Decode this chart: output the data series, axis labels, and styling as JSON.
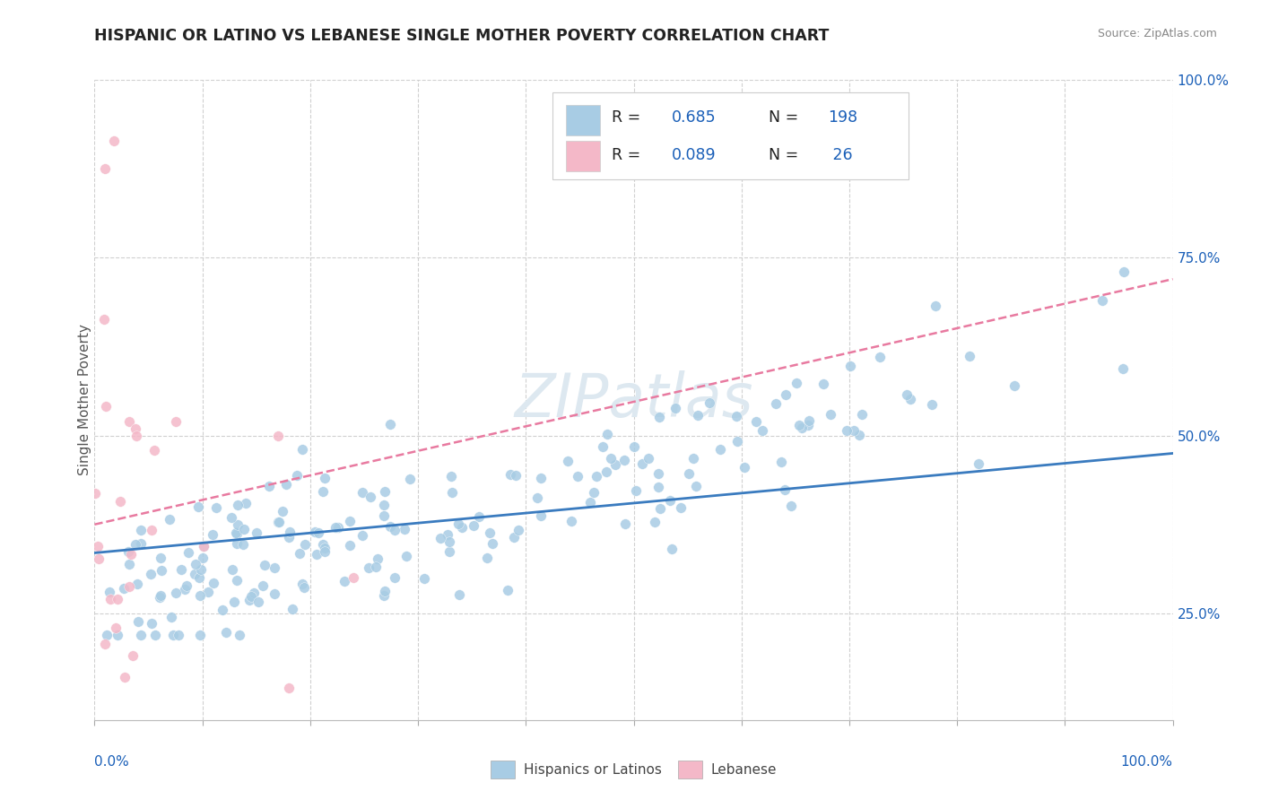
{
  "title": "HISPANIC OR LATINO VS LEBANESE SINGLE MOTHER POVERTY CORRELATION CHART",
  "source": "Source: ZipAtlas.com",
  "ylabel": "Single Mother Poverty",
  "blue_color": "#a8cce4",
  "pink_color": "#f4b8c8",
  "blue_line_color": "#3a7bbf",
  "pink_line_color": "#e87aa0",
  "legend_text_color": "#1a5fb8",
  "watermark_color": "#dde8f0",
  "xlim": [
    0.0,
    1.0
  ],
  "ylim": [
    0.1,
    1.0
  ],
  "right_yticks": [
    0.25,
    0.5,
    0.75,
    1.0
  ],
  "right_yticklabels": [
    "25.0%",
    "50.0%",
    "75.0%",
    "100.0%"
  ],
  "blue_trend_x": [
    0.0,
    1.0
  ],
  "blue_trend_y": [
    0.335,
    0.475
  ],
  "pink_trend_x": [
    0.0,
    1.0
  ],
  "pink_trend_y": [
    0.375,
    0.72
  ]
}
